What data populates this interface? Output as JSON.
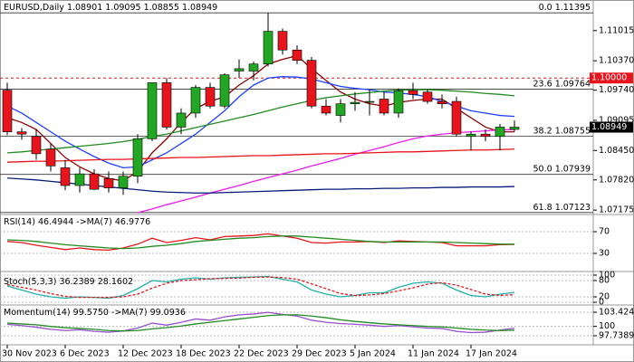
{
  "chart_data": [
    {
      "type": "candlestick",
      "title": "EURUSD,Daily",
      "categories": [
        "30 Nov 2023",
        null,
        null,
        null,
        "6 Dec 2023",
        null,
        null,
        null,
        "12 Dec 2023",
        null,
        null,
        null,
        "18 Dec 2023",
        null,
        null,
        null,
        "22 Dec 2023",
        null,
        null,
        null,
        "29 Dec 2023",
        null,
        null,
        null,
        "5 Jan 2024",
        null,
        null,
        null,
        "11 Jan 2024",
        null,
        null,
        null,
        "17 Jan 2024",
        null,
        null,
        null
      ],
      "open": [
        1.0974,
        1.0885,
        1.0875,
        1.0848,
        1.0808,
        1.077,
        1.0795,
        1.0785,
        1.0765,
        1.079,
        1.087,
        1.099,
        1.0895,
        1.0925,
        1.098,
        1.094,
        1.1015,
        1.1015,
        1.103,
        1.11,
        1.106,
        1.1038,
        1.094,
        1.092,
        1.0945,
        1.0948,
        1.0955,
        1.0925,
        1.0973,
        1.097,
        1.095,
        1.095,
        1.0875,
        1.088,
        1.0875,
        1.08901
      ],
      "high": [
        1.099,
        1.0893,
        1.089,
        1.086,
        1.0825,
        1.0808,
        1.0805,
        1.08,
        1.08,
        1.088,
        1.099,
        1.1,
        1.0935,
        1.0985,
        1.099,
        1.101,
        1.104,
        1.1035,
        1.114,
        1.1106,
        1.107,
        1.1045,
        1.0955,
        1.0955,
        1.097,
        1.0975,
        1.097,
        1.0978,
        1.099,
        1.0975,
        1.0965,
        1.096,
        1.0885,
        1.089,
        1.0902,
        1.09095
      ],
      "low": [
        1.0878,
        1.0868,
        1.0825,
        1.08,
        1.076,
        1.0755,
        1.076,
        1.0755,
        1.075,
        1.0775,
        1.0865,
        1.089,
        1.088,
        1.0915,
        1.0935,
        1.0935,
        1.1,
        1.0995,
        1.1025,
        1.105,
        1.103,
        1.0935,
        1.092,
        1.0905,
        1.093,
        1.092,
        1.092,
        1.0915,
        1.0955,
        1.0945,
        1.0935,
        1.0875,
        1.0845,
        1.0865,
        1.0845,
        1.08855
      ],
      "close": [
        1.0885,
        1.088,
        1.0838,
        1.0812,
        1.077,
        1.0795,
        1.0762,
        1.0765,
        1.079,
        1.087,
        1.099,
        1.0895,
        1.0925,
        1.098,
        1.094,
        1.1007,
        1.102,
        1.103,
        1.11,
        1.106,
        1.1038,
        1.094,
        1.0925,
        1.0945,
        1.0948,
        1.095,
        1.0925,
        1.0973,
        1.0965,
        1.095,
        1.0945,
        1.088,
        1.088,
        1.0875,
        1.0895,
        1.08949
      ],
      "up_color": "#22a722",
      "down_color": "#e8141c",
      "series": [
        {
          "color": "#8b0000",
          "values": [
            1.0915,
            1.0905,
            1.089,
            1.086,
            1.083,
            1.081,
            1.0795,
            1.0785,
            1.078,
            1.08,
            1.084,
            1.087,
            1.0905,
            1.0935,
            1.095,
            1.096,
            1.0985,
            1.1005,
            1.103,
            1.104,
            1.1048,
            1.102,
            1.0995,
            1.097,
            1.0955,
            1.0945,
            1.094,
            1.0948,
            1.0952,
            1.0955,
            1.0955,
            1.0935,
            1.0915,
            1.0895,
            1.0885,
            1.0885
          ]
        },
        {
          "color": "#1f3fff",
          "values": [
            1.094,
            1.0925,
            1.0905,
            1.0885,
            1.0865,
            1.0848,
            1.0832,
            1.0818,
            1.0808,
            1.081,
            1.0825,
            1.084,
            1.086,
            1.088,
            1.0905,
            1.093,
            1.096,
            1.0985,
            1.1,
            1.1003,
            1.1002,
            1.0998,
            1.099,
            1.0982,
            1.0978,
            1.0975,
            1.097,
            1.0968,
            1.0965,
            1.096,
            1.095,
            1.094,
            1.093,
            1.0925,
            1.092,
            1.0918
          ]
        },
        {
          "color": "#228b22",
          "values": [
            1.084,
            1.0842,
            1.0845,
            1.0848,
            1.0851,
            1.0854,
            1.0857,
            1.086,
            1.0864,
            1.0869,
            1.0875,
            1.088,
            1.0887,
            1.0894,
            1.0901,
            1.0908,
            1.0915,
            1.0922,
            1.093,
            1.0938,
            1.0945,
            1.0952,
            1.0958,
            1.0962,
            1.0966,
            1.0969,
            1.0972,
            1.0974,
            1.0975,
            1.0975,
            1.0974,
            1.0972,
            1.097,
            1.0967,
            1.0965,
            1.0962
          ]
        },
        {
          "color": "#ee1cee",
          "values": [
            null,
            null,
            null,
            null,
            null,
            null,
            null,
            null,
            null,
            1.0712,
            1.072,
            1.0729,
            1.0737,
            1.0745,
            1.0754,
            1.0762,
            1.077,
            1.0779,
            1.0787,
            1.0795,
            1.0803,
            1.0812,
            1.082,
            1.0828,
            1.0837,
            1.0845,
            1.0853,
            1.0862,
            1.087,
            1.0876,
            1.088,
            1.0883,
            1.0885,
            1.0887,
            1.0889,
            1.089
          ]
        },
        {
          "color": "#e8141c",
          "values": [
            1.082,
            1.0821,
            1.0822,
            1.0822,
            1.0823,
            1.0824,
            1.0825,
            1.0826,
            1.0826,
            1.0827,
            1.0828,
            1.0829,
            1.083,
            1.083,
            1.0831,
            1.0832,
            1.0833,
            1.0834,
            1.0834,
            1.0835,
            1.0836,
            1.0837,
            1.0838,
            1.0838,
            1.0839,
            1.084,
            1.0841,
            1.0842,
            1.0842,
            1.0843,
            1.0844,
            1.0845,
            1.0846,
            1.0846,
            1.0847,
            1.0848
          ]
        },
        {
          "color": "#0a1a7a",
          "values": [
            1.0786,
            1.0784,
            1.0782,
            1.0779,
            1.0776,
            1.0773,
            1.077,
            1.0767,
            1.0764,
            1.0761,
            1.0758,
            1.0756,
            1.0755,
            1.0754,
            1.0754,
            1.0755,
            1.0756,
            1.0757,
            1.0758,
            1.0759,
            1.076,
            1.0761,
            1.0762,
            1.0762,
            1.0763,
            1.0763,
            1.0764,
            1.0764,
            1.0765,
            1.0765,
            1.0766,
            1.0766,
            1.0767,
            1.0767,
            1.0767,
            1.0768
          ]
        }
      ],
      "levels": [
        {
          "value": 1.1,
          "label": "1.10000",
          "color": "#e8141c"
        }
      ],
      "fibonacci": [
        {
          "ratio": "0.0",
          "price": 1.11395
        },
        {
          "ratio": "23.6",
          "price": 1.09764
        },
        {
          "ratio": "38.2",
          "price": 1.08755
        },
        {
          "ratio": "50.0",
          "price": 1.07939
        },
        {
          "ratio": "61.8",
          "price": 1.07123
        }
      ],
      "ylim": [
        1.071,
        1.1167
      ],
      "yticks": [
        1.11015,
        {
          "value": 1.1037,
          "label": "1.10370"
        },
        {
          "value": 1.0974,
          "label": "1.09740"
        },
        1.09095,
        {
          "value": 1.0845,
          "label": "1.08450"
        },
        {
          "value": 1.0782,
          "label": "1.07820"
        },
        1.07175
      ]
    },
    {
      "type": "line",
      "title": "RSI(14)",
      "ma_label": "->MA(7)",
      "readings": [
        46.4944,
        46.9776
      ],
      "series": [
        {
          "color": "#e8141c",
          "values": [
            52,
            50,
            45,
            41,
            37,
            40,
            37,
            36,
            40,
            47,
            58,
            50,
            54,
            59,
            55,
            61,
            62,
            63,
            66,
            62,
            58,
            50,
            49,
            51,
            51,
            52,
            50,
            53,
            52,
            51,
            50,
            44,
            44,
            44,
            46,
            46.4944
          ]
        },
        {
          "color": "#228b22",
          "values": [
            55,
            54,
            52,
            49,
            46,
            44,
            42,
            40,
            39,
            40,
            43,
            45,
            48,
            52,
            54,
            56,
            58,
            59,
            61,
            62,
            62,
            60,
            58,
            56,
            54,
            52,
            51,
            51,
            51,
            51,
            51,
            50,
            49,
            48,
            47,
            46.9776
          ]
        }
      ],
      "ylim": [
        0,
        100
      ],
      "yticks": [
        70,
        30
      ]
    },
    {
      "type": "line",
      "title": "Stoch(5,3,3)",
      "readings": [
        36.2389,
        28.1602
      ],
      "series": [
        {
          "color": "#20b2aa",
          "values": [
            60,
            45,
            30,
            20,
            15,
            20,
            18,
            15,
            25,
            50,
            80,
            75,
            85,
            90,
            85,
            90,
            92,
            93,
            95,
            85,
            75,
            45,
            30,
            20,
            25,
            35,
            35,
            55,
            70,
            75,
            70,
            45,
            25,
            20,
            30,
            36.2389
          ]
        },
        {
          "color": "#e8141c",
          "dashed": true,
          "values": [
            65,
            55,
            45,
            32,
            22,
            18,
            18,
            18,
            20,
            30,
            52,
            70,
            80,
            83,
            87,
            88,
            89,
            92,
            93,
            91,
            85,
            68,
            50,
            32,
            25,
            27,
            32,
            42,
            53,
            67,
            72,
            63,
            47,
            30,
            25,
            28.1602
          ]
        }
      ],
      "ylim": [
        0,
        100
      ],
      "yticks": [
        100,
        80,
        20,
        0
      ]
    },
    {
      "type": "line",
      "title": "Momentum(14)",
      "ma_label": "->MA(7)",
      "readings": [
        {
          "value": 99.575,
          "label": "99.5750"
        },
        99.0936
      ],
      "series": [
        {
          "color": "#9a4fd0",
          "values": [
            100.5,
            100.2,
            99.8,
            99.3,
            99.0,
            99.2,
            98.8,
            98.6,
            98.9,
            99.6,
            100.8,
            100.3,
            101.0,
            101.8,
            101.5,
            102.3,
            102.8,
            103.0,
            103.4,
            102.9,
            102.5,
            101.5,
            101.0,
            100.7,
            100.5,
            100.3,
            100.0,
            100.2,
            99.9,
            99.6,
            99.5,
            98.8,
            98.5,
            98.6,
            99.1,
            99.575
          ]
        },
        {
          "color": "#228b22",
          "values": [
            100.8,
            100.6,
            100.4,
            100.0,
            99.7,
            99.5,
            99.3,
            99.0,
            98.9,
            99.0,
            99.4,
            99.7,
            100.1,
            100.6,
            101.0,
            101.4,
            101.8,
            102.2,
            102.6,
            102.8,
            102.8,
            102.5,
            102.1,
            101.6,
            101.2,
            100.9,
            100.6,
            100.4,
            100.2,
            100.0,
            99.9,
            99.6,
            99.3,
            99.1,
            99.0,
            99.0936
          ]
        }
      ],
      "ylim": [
        95.77,
        104.96
      ],
      "yticks": [
        103.4245,
        100,
        97.7389
      ]
    }
  ]
}
